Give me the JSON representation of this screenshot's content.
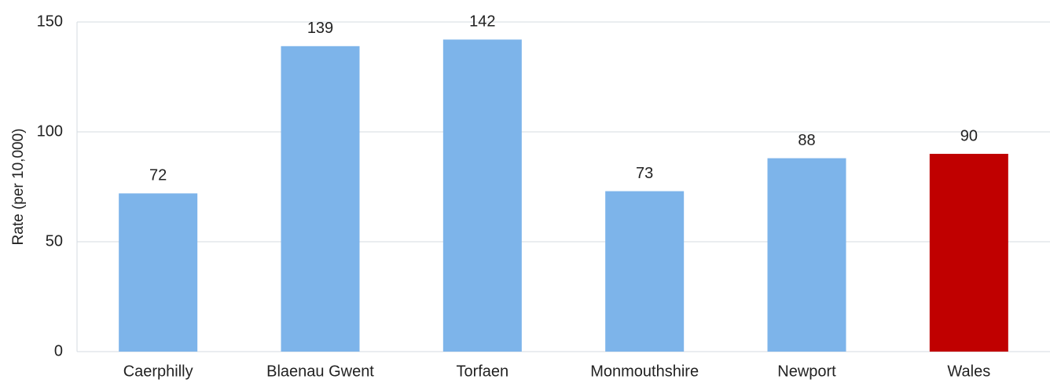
{
  "chart_data": {
    "type": "bar",
    "y_label": "Rate (per 10,000)",
    "categories": [
      "Caerphilly",
      "Blaenau Gwent",
      "Torfaen",
      "Monmouthshire",
      "Newport",
      "Wales"
    ],
    "values": [
      72,
      139,
      142,
      73,
      88,
      90
    ],
    "colors": [
      "#7db4ea",
      "#7db4ea",
      "#7db4ea",
      "#7db4ea",
      "#7db4ea",
      "#c00000"
    ],
    "ylim": [
      0,
      150
    ],
    "yticks": [
      0,
      50,
      100,
      150
    ],
    "grid": true
  }
}
